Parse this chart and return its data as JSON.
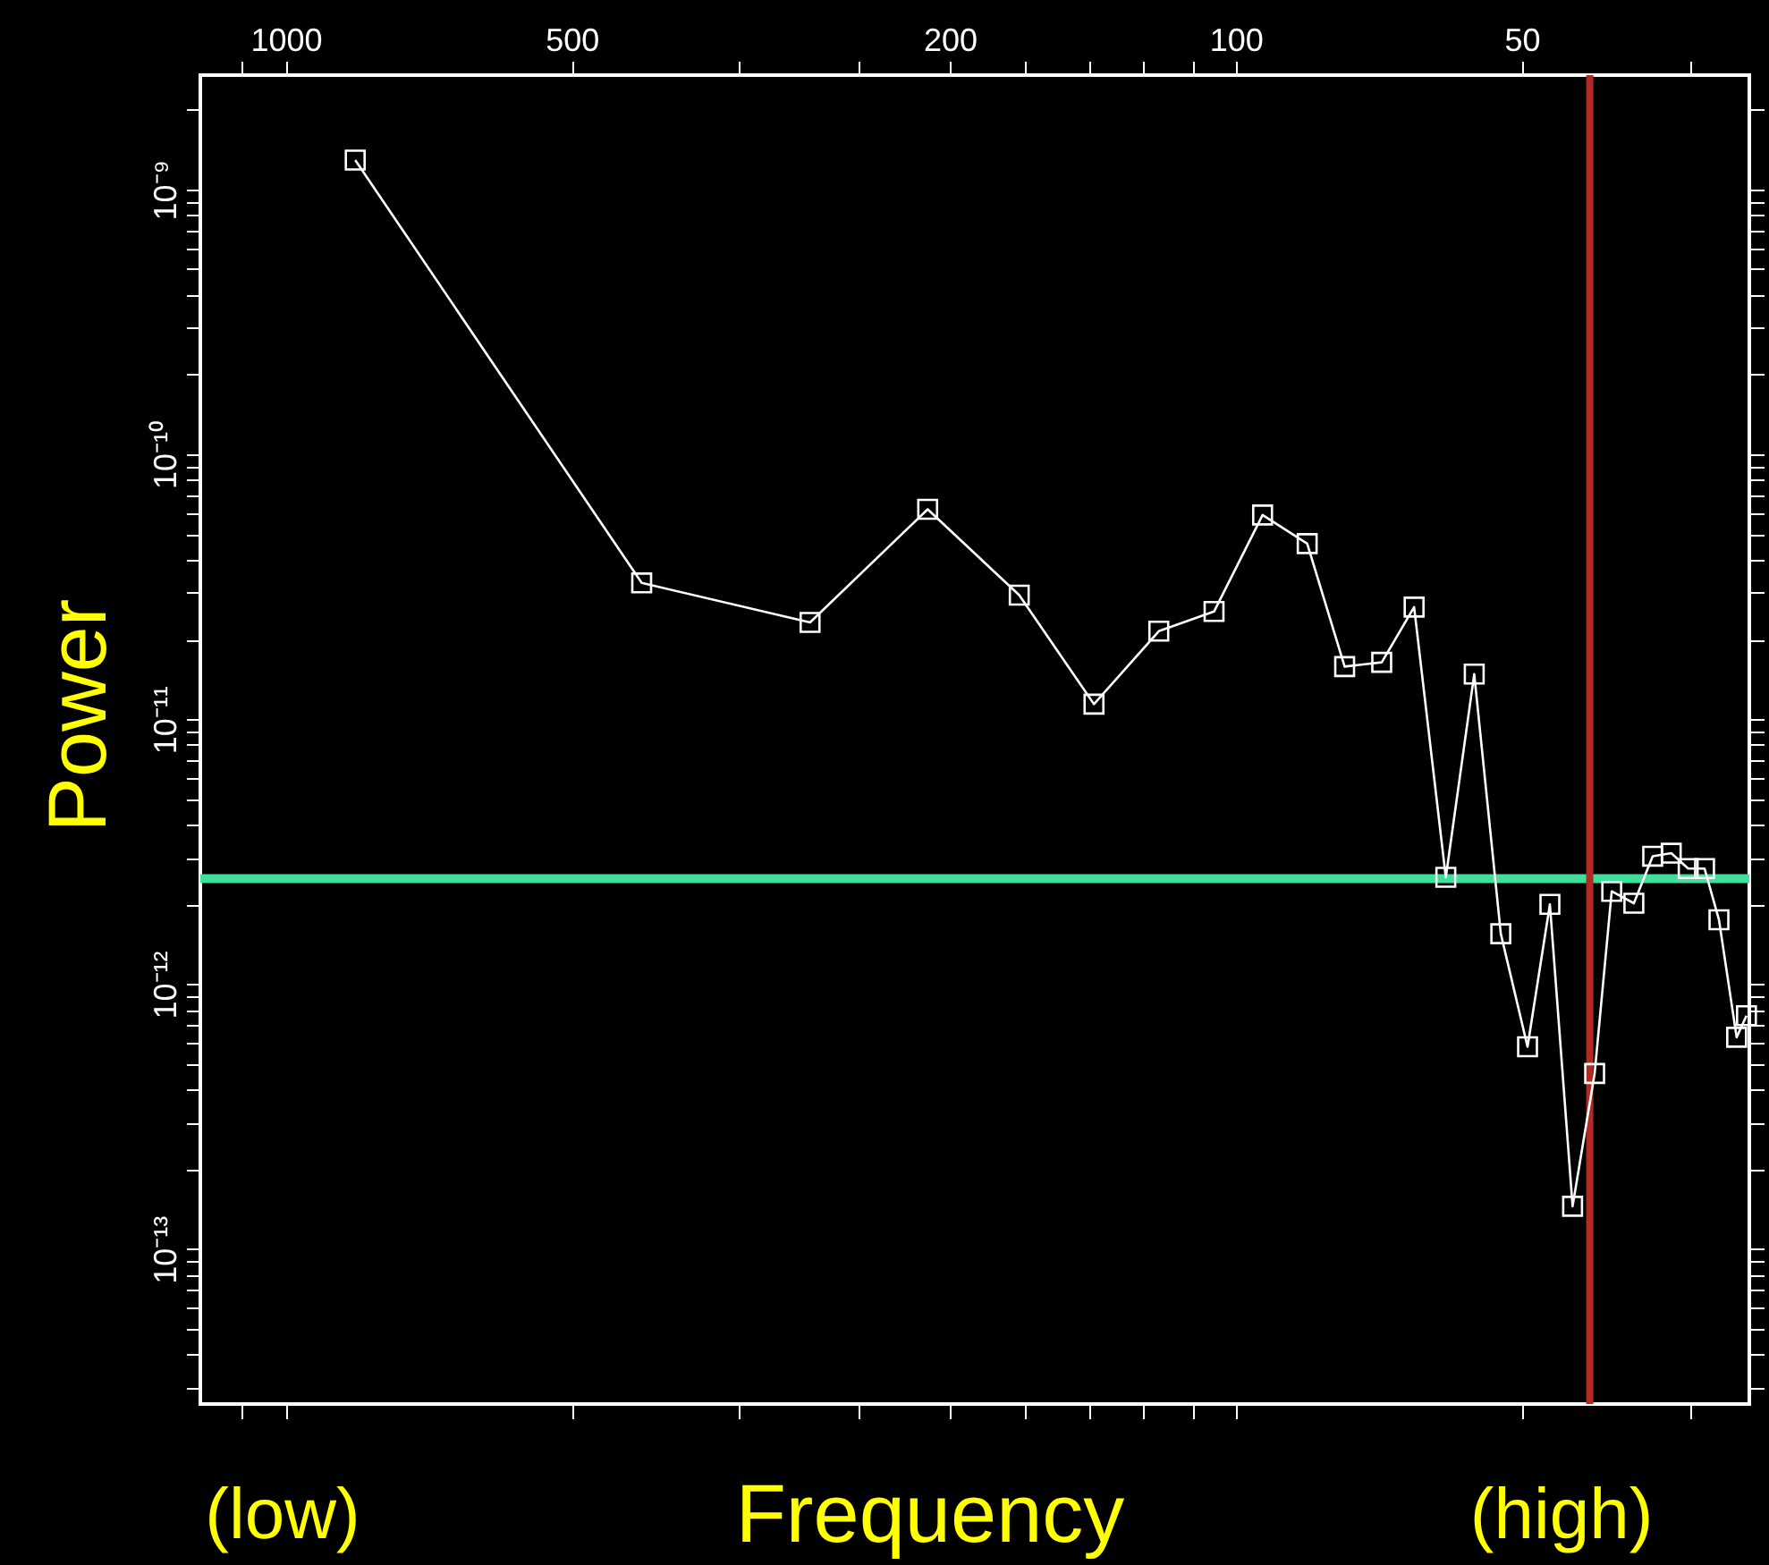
{
  "chart_data": {
    "type": "line",
    "xlabel": "Frequency",
    "ylabel": "Power",
    "annotations": [
      "(low)",
      "(high)"
    ],
    "x": [
      845,
      422,
      280.6,
      211,
      169,
      141,
      120.5,
      105.4,
      93.7,
      84.1,
      76.8,
      70.2,
      64.9,
      60.1,
      56.1,
      52.6,
      49.3,
      46.7,
      44.2,
      41.9,
      40.2,
      38.1,
      36.4,
      34.8,
      33.4,
      32.1,
      31.0,
      29.7,
      29.0
    ],
    "series": [
      {
        "color": "#ffffff",
        "values": [
          1.29e-09,
          3.27e-11,
          2.32e-11,
          6.2e-11,
          2.94e-11,
          1.14e-11,
          2.15e-11,
          2.55e-11,
          5.9e-11,
          4.6e-11,
          1.58e-11,
          1.64e-11,
          2.65e-11,
          2.53e-12,
          1.48e-11,
          1.55e-12,
          5.8e-13,
          2e-12,
          1.45e-13,
          4.6e-13,
          2.24e-12,
          2.02e-12,
          3.04e-12,
          3.12e-12,
          2.73e-12,
          2.73e-12,
          1.75e-12,
          6.3e-13,
          7.6e-13
        ]
      }
    ],
    "marker": "square",
    "line_style": "solid",
    "log": "xy",
    "grid": false,
    "xlim": [
      1230,
      28.8
    ],
    "ylim": [
      2.6e-14,
      2.7e-09
    ],
    "xticks": [
      {
        "value": 1111.1,
        "label": null
      },
      1000,
      500,
      {
        "value": 333.3,
        "label": null
      },
      {
        "value": 250,
        "label": null
      },
      200,
      {
        "value": 166.7,
        "label": null
      },
      {
        "value": 142.9,
        "label": null
      },
      {
        "value": 125,
        "label": null
      },
      {
        "value": 111.1,
        "label": null
      },
      100,
      50,
      {
        "value": 33.3,
        "label": null
      }
    ],
    "yticks": [
      {
        "value": 3e-14,
        "label": null
      },
      {
        "value": 4e-14,
        "label": null
      },
      {
        "value": 5e-14,
        "label": null
      },
      {
        "value": 6e-14,
        "label": null
      },
      {
        "value": 7e-14,
        "label": null
      },
      {
        "value": 8e-14,
        "label": null
      },
      {
        "value": 9e-14,
        "label": null
      },
      {
        "value": 1e-13,
        "label": "10⁻¹³"
      },
      {
        "value": 2e-13,
        "label": null
      },
      {
        "value": 3e-13,
        "label": null
      },
      {
        "value": 4e-13,
        "label": null
      },
      {
        "value": 5e-13,
        "label": null
      },
      {
        "value": 6e-13,
        "label": null
      },
      {
        "value": 7e-13,
        "label": null
      },
      {
        "value": 8e-13,
        "label": null
      },
      {
        "value": 9e-13,
        "label": null
      },
      {
        "value": 1e-12,
        "label": "10⁻¹²"
      },
      {
        "value": 2e-12,
        "label": null
      },
      {
        "value": 3e-12,
        "label": null
      },
      {
        "value": 4e-12,
        "label": null
      },
      {
        "value": 5e-12,
        "label": null
      },
      {
        "value": 6e-12,
        "label": null
      },
      {
        "value": 7e-12,
        "label": null
      },
      {
        "value": 8e-12,
        "label": null
      },
      {
        "value": 9e-12,
        "label": null
      },
      {
        "value": 1e-11,
        "label": "10⁻¹¹"
      },
      {
        "value": 2e-11,
        "label": null
      },
      {
        "value": 3e-11,
        "label": null
      },
      {
        "value": 4e-11,
        "label": null
      },
      {
        "value": 5e-11,
        "label": null
      },
      {
        "value": 6e-11,
        "label": null
      },
      {
        "value": 7e-11,
        "label": null
      },
      {
        "value": 8e-11,
        "label": null
      },
      {
        "value": 9e-11,
        "label": null
      },
      {
        "value": 1e-10,
        "label": "10⁻¹⁰"
      },
      {
        "value": 2e-10,
        "label": null
      },
      {
        "value": 3e-10,
        "label": null
      },
      {
        "value": 4e-10,
        "label": null
      },
      {
        "value": 5e-10,
        "label": null
      },
      {
        "value": 6e-10,
        "label": null
      },
      {
        "value": 7e-10,
        "label": null
      },
      {
        "value": 8e-10,
        "label": null
      },
      {
        "value": 9e-10,
        "label": null
      },
      {
        "value": 1e-09,
        "label": "10⁻⁹"
      },
      {
        "value": 2e-09,
        "label": null
      }
    ],
    "ref_lines": [
      {
        "axis": "y",
        "value": 2.5e-12,
        "label": null,
        "color": "#3fe09a"
      },
      {
        "axis": "x",
        "value": 42.4,
        "label": null,
        "color": "#b02a24"
      }
    ]
  }
}
